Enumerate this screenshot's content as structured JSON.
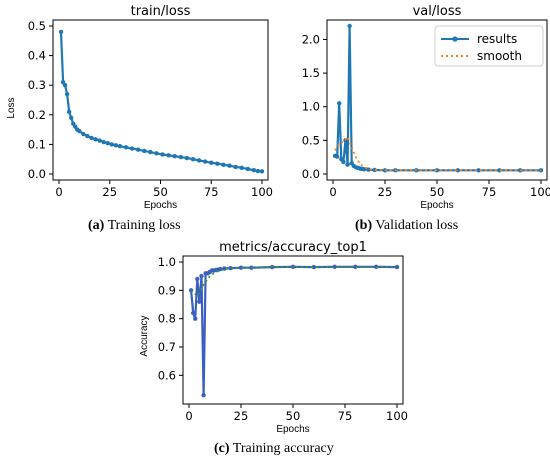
{
  "chart_data": [
    {
      "type": "line",
      "title": "train/loss",
      "xlabel": "Epochs",
      "ylabel": "Loss",
      "xlim": [
        0,
        100
      ],
      "ylim": [
        0,
        0.5
      ],
      "xticks": [
        "0",
        "25",
        "50",
        "75",
        "100"
      ],
      "yticks": [
        "0.0",
        "0.1",
        "0.2",
        "0.3",
        "0.4",
        "0.5"
      ],
      "series": [
        {
          "x": [
            1,
            2,
            3,
            4,
            5,
            6,
            7,
            8,
            9,
            10,
            12,
            14,
            16,
            18,
            20,
            22,
            24,
            26,
            28,
            30,
            33,
            36,
            39,
            42,
            45,
            48,
            51,
            54,
            57,
            60,
            63,
            66,
            69,
            72,
            75,
            78,
            81,
            84,
            87,
            90,
            93,
            96,
            98,
            100
          ],
          "values": [
            0.48,
            0.31,
            0.3,
            0.27,
            0.21,
            0.19,
            0.17,
            0.16,
            0.15,
            0.145,
            0.135,
            0.128,
            0.122,
            0.117,
            0.113,
            0.108,
            0.104,
            0.1,
            0.097,
            0.094,
            0.09,
            0.086,
            0.082,
            0.078,
            0.074,
            0.07,
            0.066,
            0.063,
            0.06,
            0.057,
            0.054,
            0.05,
            0.046,
            0.042,
            0.038,
            0.035,
            0.031,
            0.028,
            0.024,
            0.021,
            0.017,
            0.013,
            0.01,
            0.009
          ]
        }
      ]
    },
    {
      "type": "line",
      "title": "val/loss",
      "xlabel": "Epochs",
      "ylabel": "",
      "xlim": [
        0,
        100
      ],
      "ylim": [
        0,
        2.2
      ],
      "xticks": [
        "0",
        "25",
        "50",
        "75",
        "100"
      ],
      "yticks": [
        "0.0",
        "0.5",
        "1.0",
        "1.5",
        "2.0"
      ],
      "legend": [
        "results",
        "smooth"
      ],
      "legend_position": "top-right",
      "series": [
        {
          "name": "results",
          "x": [
            1,
            2,
            3,
            4,
            5,
            6,
            7,
            8,
            9,
            10,
            11,
            12,
            13,
            14,
            15,
            17,
            20,
            25,
            30,
            40,
            50,
            60,
            70,
            80,
            90,
            100
          ],
          "values": [
            0.27,
            0.26,
            1.05,
            0.22,
            0.18,
            0.5,
            0.14,
            2.2,
            0.16,
            0.12,
            0.1,
            0.09,
            0.08,
            0.075,
            0.07,
            0.065,
            0.06,
            0.055,
            0.055,
            0.055,
            0.055,
            0.055,
            0.055,
            0.055,
            0.055,
            0.055
          ]
        },
        {
          "name": "smooth",
          "x": [
            1,
            3,
            5,
            7,
            9,
            11,
            13,
            15,
            18,
            22,
            30,
            40,
            60,
            80,
            100
          ],
          "values": [
            0.35,
            0.45,
            0.48,
            0.55,
            0.4,
            0.25,
            0.15,
            0.1,
            0.07,
            0.06,
            0.055,
            0.055,
            0.055,
            0.055,
            0.055
          ]
        }
      ]
    },
    {
      "type": "line",
      "title": "metrics/accuracy_top1",
      "xlabel": "Epochs",
      "ylabel": "Accuracy",
      "xlim": [
        0,
        100
      ],
      "ylim": [
        0.52,
        1.0
      ],
      "xticks": [
        "0",
        "25",
        "50",
        "75",
        "100"
      ],
      "yticks": [
        "0.6",
        "0.7",
        "0.8",
        "0.9",
        "1.0"
      ],
      "series": [
        {
          "x": [
            1,
            2,
            3,
            4,
            5,
            6,
            7,
            8,
            9,
            10,
            11,
            12,
            13,
            14,
            15,
            17,
            20,
            25,
            30,
            40,
            50,
            60,
            70,
            80,
            90,
            100
          ],
          "values": [
            0.9,
            0.82,
            0.8,
            0.94,
            0.86,
            0.95,
            0.53,
            0.96,
            0.96,
            0.965,
            0.97,
            0.97,
            0.972,
            0.973,
            0.975,
            0.977,
            0.978,
            0.98,
            0.98,
            0.982,
            0.983,
            0.982,
            0.983,
            0.983,
            0.983,
            0.982
          ]
        },
        {
          "x": [
            1,
            4,
            7,
            10,
            13,
            17,
            25,
            40,
            60,
            80,
            100
          ],
          "values": [
            0.9,
            0.88,
            0.92,
            0.95,
            0.965,
            0.975,
            0.98,
            0.982,
            0.982,
            0.982,
            0.982
          ]
        }
      ]
    }
  ],
  "captions": {
    "a_label": "(a)",
    "a_text": " Training loss",
    "b_label": "(b)",
    "b_text": " Validation loss",
    "c_label": "(c)",
    "c_text": " Training accuracy"
  },
  "colors": {
    "results": "#1f77b4",
    "smooth": "#ff7f0e",
    "accuracy_results": "#3b5fc0",
    "accuracy_smooth": "#2ca02c"
  }
}
